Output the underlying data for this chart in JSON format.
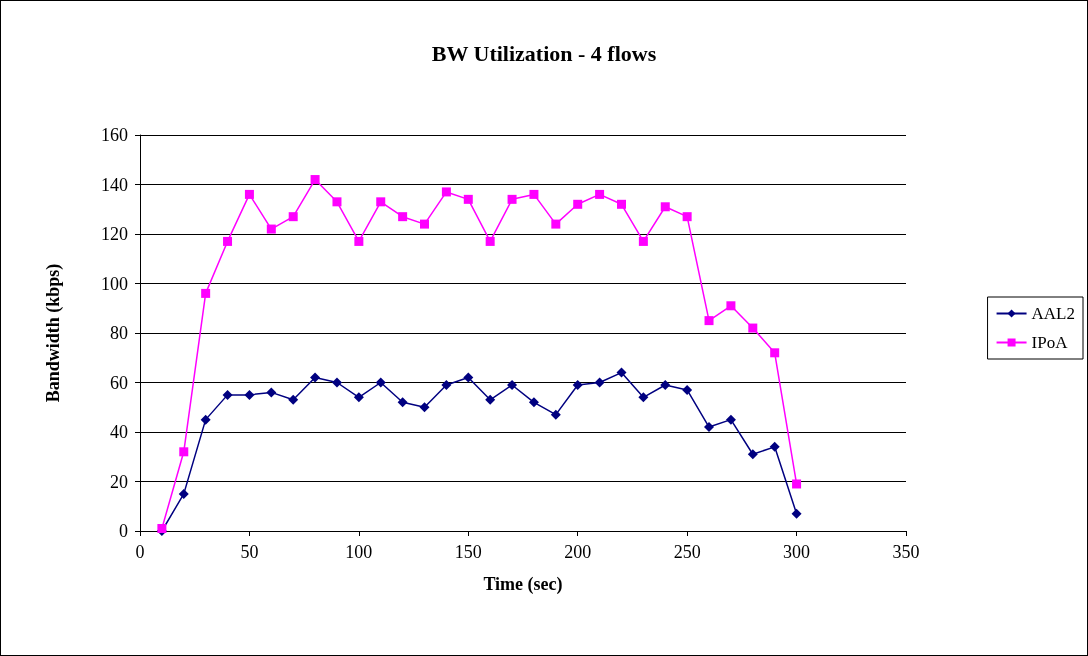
{
  "chart_data": {
    "type": "line",
    "title": "BW Utilization - 4 flows",
    "xlabel": "Time (sec)",
    "ylabel": "Bandwidth (kbps)",
    "x": [
      10,
      20,
      30,
      40,
      50,
      60,
      70,
      80,
      90,
      100,
      110,
      120,
      130,
      140,
      150,
      160,
      170,
      180,
      190,
      200,
      210,
      220,
      230,
      240,
      250,
      260,
      270,
      280,
      290,
      300
    ],
    "series": [
      {
        "name": "AAL2",
        "color": "#000080",
        "marker": "diamond",
        "values": [
          0,
          15,
          45,
          55,
          55,
          56,
          53,
          62,
          60,
          54,
          60,
          52,
          50,
          59,
          62,
          53,
          59,
          52,
          47,
          59,
          60,
          64,
          54,
          59,
          57,
          42,
          45,
          31,
          34,
          7
        ]
      },
      {
        "name": "IPoA",
        "color": "#ff00ff",
        "marker": "square",
        "values": [
          1,
          32,
          96,
          117,
          136,
          122,
          127,
          142,
          133,
          117,
          133,
          127,
          124,
          137,
          134,
          117,
          134,
          136,
          124,
          132,
          136,
          132,
          117,
          131,
          127,
          85,
          91,
          82,
          72,
          19
        ]
      }
    ],
    "xlim": [
      0,
      350
    ],
    "xticks": [
      0,
      50,
      100,
      150,
      200,
      250,
      300,
      350
    ],
    "ylim": [
      0,
      160
    ],
    "yticks": [
      0,
      20,
      40,
      60,
      80,
      100,
      120,
      140,
      160
    ],
    "grid": "y",
    "legend": "right",
    "line_style": "solid"
  }
}
